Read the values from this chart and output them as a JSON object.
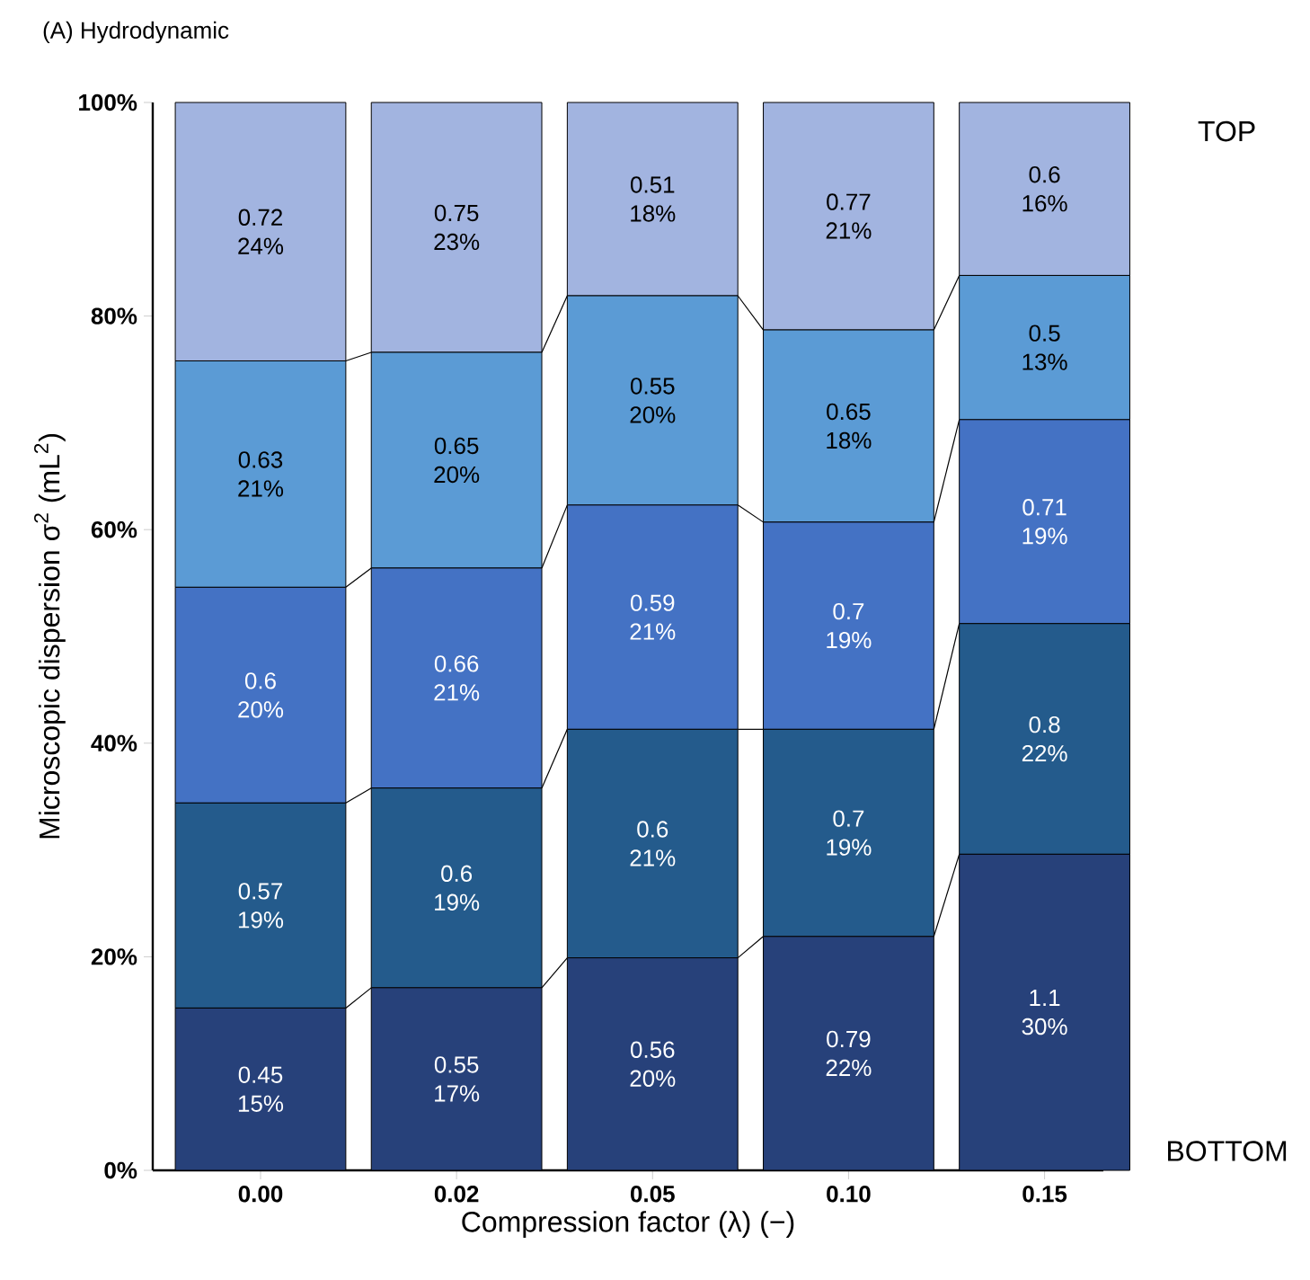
{
  "chart_data": {
    "type": "bar",
    "stacked": true,
    "title": "(A) Hydrodynamic",
    "xlabel": "Compression factor (λ) (−)",
    "ylabel": "Microscopic dispersion σ$^{2}$ (mL$^{2}$)",
    "categories": [
      "0.00",
      "0.02",
      "0.05",
      "0.10",
      "0.15"
    ],
    "series": [
      {
        "color": "#27417a",
        "values": [
          15.2,
          17.1,
          19.9,
          21.9,
          29.6
        ],
        "value_labels": [
          "0.45 15%",
          "0.55 17%",
          "0.56 20%",
          "0.79 22%",
          "1.1 30%"
        ]
      },
      {
        "color": "#245b8c",
        "values": [
          19.2,
          18.7,
          21.4,
          19.4,
          21.6
        ],
        "value_labels": [
          "0.57 19%",
          "0.6 19%",
          "0.6 21%",
          "0.7 19%",
          "0.8 22%"
        ]
      },
      {
        "color": "#4472c4",
        "values": [
          20.2,
          20.6,
          21.0,
          19.4,
          19.1
        ],
        "value_labels": [
          "0.6 20%",
          "0.66 21%",
          "0.59 21%",
          "0.7 19%",
          "0.71 19%"
        ]
      },
      {
        "color": "#5b9bd5",
        "values": [
          21.2,
          20.2,
          19.6,
          18.0,
          13.5
        ],
        "value_labels": [
          "0.63 21%",
          "0.65 20%",
          "0.55 20%",
          "0.65 18%",
          "0.5 13%"
        ]
      },
      {
        "color": "#a2b4e0",
        "values": [
          24.2,
          23.4,
          18.1,
          21.3,
          16.2
        ],
        "value_labels": [
          "0.72 24%",
          "0.75 23%",
          "0.51 18%",
          "0.77 21%",
          "0.6 16%"
        ]
      }
    ],
    "ylim": [
      0,
      100
    ],
    "yticks": [
      {
        "value": 0,
        "label": "0%"
      },
      {
        "value": 20,
        "label": "20%"
      },
      {
        "value": 40,
        "label": "40%"
      },
      {
        "value": 60,
        "label": "60%"
      },
      {
        "value": 80,
        "label": "80%"
      },
      {
        "value": 100,
        "label": "100%"
      }
    ],
    "annotations": [
      "TOP",
      "BOTTOM"
    ]
  }
}
